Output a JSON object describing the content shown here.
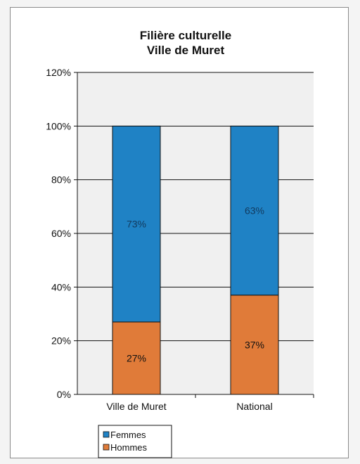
{
  "chart_data": {
    "type": "bar",
    "stacked": true,
    "title_lines": [
      "Filière culturelle",
      "Ville de Muret"
    ],
    "categories": [
      "Ville de Muret",
      "National"
    ],
    "series": [
      {
        "name": "Hommes",
        "values": [
          27,
          37
        ],
        "labels": [
          "27%",
          "37%"
        ],
        "color": "#e07b39"
      },
      {
        "name": "Femmes",
        "values": [
          73,
          63
        ],
        "labels": [
          "73%",
          "63%"
        ],
        "color": "#1f82c5"
      }
    ],
    "ylim": [
      0,
      120
    ],
    "yticks": [
      0,
      20,
      40,
      60,
      80,
      100,
      120
    ],
    "ytick_labels": [
      "0%",
      "20%",
      "40%",
      "60%",
      "80%",
      "100%",
      "120%"
    ],
    "grid": true,
    "plot_background": "#f0f0f0",
    "legend_position": "bottom-left",
    "legend_order": [
      "Femmes",
      "Hommes"
    ]
  }
}
